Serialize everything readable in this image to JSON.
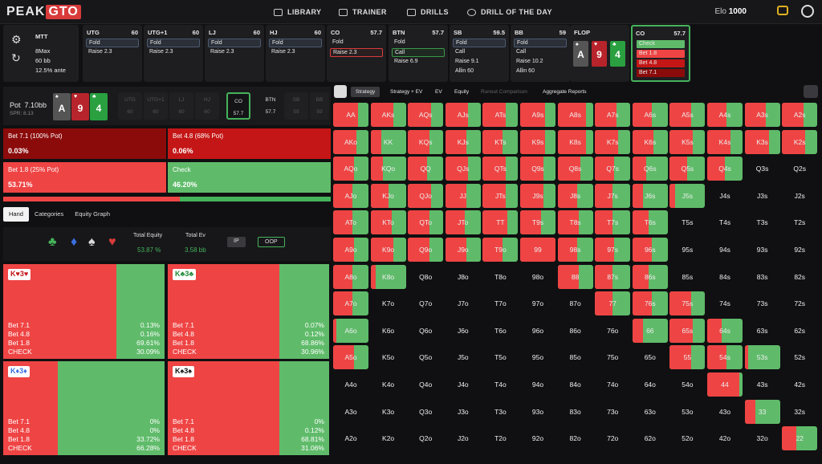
{
  "app": {
    "logo_a": "PEAK",
    "logo_b": "GTO",
    "elo_label": "Elo",
    "elo_value": "1000"
  },
  "nav": [
    {
      "label": "LIBRARY",
      "icon": "library-icon"
    },
    {
      "label": "TRAINER",
      "icon": "gamepad-icon"
    },
    {
      "label": "DRILLS",
      "icon": "drills-icon"
    },
    {
      "label": "DRILL OF THE DAY",
      "icon": "plus-circle-icon"
    }
  ],
  "settings": {
    "game": "MTT",
    "table": "8Max",
    "stack": "60 bb",
    "ante": "12.5% ante"
  },
  "positions": [
    {
      "name": "UTG",
      "stack": "60",
      "actions": [
        "Fold",
        "Raise 2.3"
      ],
      "sel": 0
    },
    {
      "name": "UTG+1",
      "stack": "60",
      "actions": [
        "Fold",
        "Raise 2.3"
      ],
      "sel": 0
    },
    {
      "name": "LJ",
      "stack": "60",
      "actions": [
        "Fold",
        "Raise 2.3"
      ],
      "sel": 0
    },
    {
      "name": "HJ",
      "stack": "60",
      "actions": [
        "Fold",
        "Raise 2.3"
      ],
      "sel": 0
    },
    {
      "name": "CO",
      "stack": "57.7",
      "actions": [
        "Fold",
        "Raise 2.3"
      ],
      "sel": 1
    },
    {
      "name": "BTN",
      "stack": "57.7",
      "actions": [
        "Fold",
        "Call",
        "Raise 6.9"
      ],
      "sel": 1
    },
    {
      "name": "SB",
      "stack": "59.5",
      "actions": [
        "Fold",
        "Call",
        "Raise 9.1",
        "Allin 60"
      ],
      "sel": 0
    },
    {
      "name": "BB",
      "stack": "59",
      "actions": [
        "Fold",
        "Call",
        "Raise 10.2",
        "Allin 60"
      ],
      "sel": 0
    }
  ],
  "flop": {
    "label": "FLOP",
    "cards": [
      {
        "rank": "A",
        "suit": "♠"
      },
      {
        "rank": "9",
        "suit": "♥"
      },
      {
        "rank": "4",
        "suit": "♣"
      }
    ]
  },
  "co_panel": {
    "name": "CO",
    "stack": "57.7",
    "actions": [
      "Check",
      "Bet 1.8",
      "Bet 4.8",
      "Bet 7.1"
    ]
  },
  "board": {
    "pot_label": "Pot",
    "pot": "7.10bb",
    "spr": "SPR: 8.13",
    "seats": [
      {
        "name": "UTG",
        "stack": "60"
      },
      {
        "name": "UTG+1",
        "stack": "60"
      },
      {
        "name": "LJ",
        "stack": "60"
      },
      {
        "name": "HJ",
        "stack": "60"
      },
      {
        "name": "CO",
        "stack": "57.7"
      },
      {
        "name": "BTN",
        "stack": "57.7"
      },
      {
        "name": "SB",
        "stack": "59"
      },
      {
        "name": "BB",
        "stack": "59"
      }
    ]
  },
  "bets": [
    {
      "label": "Bet 7.1 (100% Pot)",
      "pct": "0.03%",
      "color": "#8b0b0b"
    },
    {
      "label": "Bet 4.8 (68% Pot)",
      "pct": "0.06%",
      "color": "#c41616"
    },
    {
      "label": "Bet 1.8 (25% Pot)",
      "pct": "53.71%",
      "color": "#ef4444"
    },
    {
      "label": "Check",
      "pct": "46.20%",
      "color": "#5fbb6a"
    }
  ],
  "freq_bar": {
    "aggressive": 0.538
  },
  "tabs": [
    "Hand",
    "Categories",
    "Equity Graph"
  ],
  "equity": {
    "total_equity_label": "Total Equity",
    "total_equity": "53.87 %",
    "total_ev_label": "Total Ev",
    "total_ev": "3.58 bb",
    "ip": "IP",
    "oop": "OOP",
    "suits": [
      "♣",
      "♦",
      "♠",
      "♥"
    ]
  },
  "combos": [
    {
      "tag": "K♥3♥",
      "red": 0.7,
      "rows": [
        [
          "Bet 7.1",
          "0.13%"
        ],
        [
          "Bet 4.8",
          "0.16%"
        ],
        [
          "Bet 1.8",
          "69.61%"
        ],
        [
          "CHECK",
          "30.09%"
        ]
      ]
    },
    {
      "tag": "K♣3♣",
      "red": 0.69,
      "rows": [
        [
          "Bet 7.1",
          "0.07%"
        ],
        [
          "Bet 4.8",
          "0.12%"
        ],
        [
          "Bet 1.8",
          "68.86%"
        ],
        [
          "CHECK",
          "30.96%"
        ]
      ]
    },
    {
      "tag": "K♦3♦",
      "red": 0.34,
      "rows": [
        [
          "Bet 7.1",
          "0%"
        ],
        [
          "Bet 4.8",
          "0%"
        ],
        [
          "Bet 1.8",
          "33.72%"
        ],
        [
          "CHECK",
          "66.28%"
        ]
      ]
    },
    {
      "tag": "K♠3♠",
      "red": 0.69,
      "rows": [
        [
          "Bet 7.1",
          "0%"
        ],
        [
          "Bet 4.8",
          "0.12%"
        ],
        [
          "Bet 1.8",
          "68.81%"
        ],
        [
          "CHECK",
          "31.06%"
        ]
      ]
    }
  ],
  "strategy_tabs": [
    "Strategy",
    "Strategy + EV",
    "EV",
    "Equity",
    "Runout Comparison",
    "Aggregate Reports"
  ],
  "ranks": [
    "A",
    "K",
    "Q",
    "J",
    "T",
    "9",
    "8",
    "7",
    "6",
    "5",
    "4",
    "3",
    "2"
  ],
  "matrix_red": [
    [
      0.7,
      0.65,
      0.65,
      0.65,
      0.65,
      0.7,
      0.8,
      0.6,
      0.55,
      0.6,
      0.55,
      0.6,
      0.6
    ],
    [
      0.65,
      0.3,
      0.6,
      0.6,
      0.55,
      0.7,
      0.8,
      0.65,
      0.6,
      0.65,
      0.65,
      0.7,
      0.65
    ],
    [
      0.6,
      0.35,
      0.55,
      0.65,
      0.65,
      0.65,
      0.65,
      0.55,
      0.4,
      0.5,
      0.5,
      0,
      0
    ],
    [
      0.55,
      0.5,
      0.65,
      0.6,
      0.65,
      0.65,
      0.55,
      0.5,
      0.3,
      0.15,
      0,
      0,
      0
    ],
    [
      0.55,
      0.6,
      0.6,
      0.55,
      0.7,
      0.6,
      0.6,
      0.5,
      0.45,
      0,
      0,
      0,
      0
    ],
    [
      0.6,
      0.65,
      0.6,
      0.6,
      0.55,
      1,
      0.55,
      0.55,
      0.55,
      0,
      0,
      0,
      0
    ],
    [
      0.55,
      0.15,
      0,
      0,
      0,
      0,
      0.6,
      0.5,
      0.45,
      0,
      0,
      0,
      0
    ],
    [
      0.55,
      0,
      0,
      0,
      0,
      0,
      0,
      0.5,
      0.55,
      0.6,
      0,
      0,
      0
    ],
    [
      0.1,
      0,
      0,
      0,
      0,
      0,
      0,
      0,
      0.3,
      0.65,
      0.4,
      0,
      0
    ],
    [
      0.6,
      0,
      0,
      0,
      0,
      0,
      0,
      0,
      0,
      0.6,
      0.55,
      0.1,
      0
    ],
    [
      0,
      0,
      0,
      0,
      0,
      0,
      0,
      0,
      0,
      0,
      0.9,
      0,
      0
    ],
    [
      0,
      0,
      0,
      0,
      0,
      0,
      0,
      0,
      0,
      0,
      0,
      0.3,
      0
    ],
    [
      0,
      0,
      0,
      0,
      0,
      0,
      0,
      0,
      0,
      0,
      0,
      0,
      0.4
    ]
  ]
}
